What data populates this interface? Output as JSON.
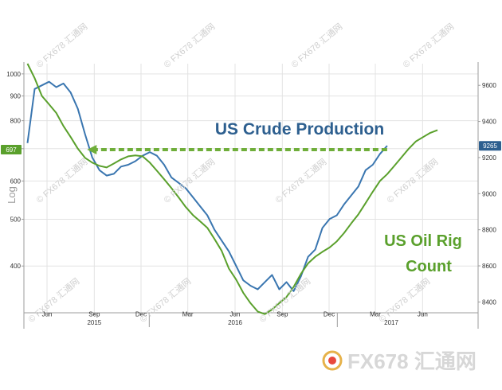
{
  "chart_data": {
    "type": "line",
    "title": "",
    "left_axis": {
      "label": "Log",
      "scale": "log",
      "range": [
        320,
        1050
      ],
      "ticks": [
        400,
        500,
        600,
        700,
        800,
        900,
        1000
      ],
      "tick_labels": [
        "400",
        "500",
        "600",
        "700",
        "800",
        "900",
        "1000"
      ]
    },
    "right_axis": {
      "label": "",
      "scale": "linear",
      "range": [
        8340,
        9720
      ],
      "ticks": [
        8400,
        8600,
        8800,
        9000,
        9200,
        9400,
        9600
      ],
      "tick_labels": [
        "8400",
        "8600",
        "8800",
        "9000",
        "9200",
        "9400",
        "9600"
      ]
    },
    "x_axis": {
      "start": "2015-05-01",
      "end": "2017-10-01",
      "month_ticks": [
        {
          "date": "2015-06-15",
          "label": "Jun"
        },
        {
          "date": "2015-09-15",
          "label": "Sep"
        },
        {
          "date": "2015-12-15",
          "label": "Dec"
        },
        {
          "date": "2016-03-15",
          "label": "Mar"
        },
        {
          "date": "2016-06-15",
          "label": "Jun"
        },
        {
          "date": "2016-09-15",
          "label": "Sep"
        },
        {
          "date": "2016-12-15",
          "label": "Dec"
        },
        {
          "date": "2017-03-15",
          "label": "Mar"
        },
        {
          "date": "2017-06-15",
          "label": "Jun"
        }
      ],
      "year_labels": [
        {
          "date": "2015-09-15",
          "label": "2015"
        },
        {
          "date": "2016-06-15",
          "label": "2016"
        },
        {
          "date": "2017-04-15",
          "label": "2017"
        }
      ],
      "year_dividers": [
        "2015-12-31",
        "2016-12-31"
      ]
    },
    "series": [
      {
        "name": "US Crude Production",
        "axis": "right",
        "color": "#3a76b0",
        "points": [
          [
            "2015-05-08",
            9280
          ],
          [
            "2015-05-22",
            9580
          ],
          [
            "2015-06-05",
            9600
          ],
          [
            "2015-06-19",
            9620
          ],
          [
            "2015-07-03",
            9590
          ],
          [
            "2015-07-17",
            9610
          ],
          [
            "2015-07-31",
            9560
          ],
          [
            "2015-08-14",
            9470
          ],
          [
            "2015-08-28",
            9330
          ],
          [
            "2015-09-11",
            9200
          ],
          [
            "2015-09-25",
            9130
          ],
          [
            "2015-10-09",
            9100
          ],
          [
            "2015-10-23",
            9110
          ],
          [
            "2015-11-06",
            9150
          ],
          [
            "2015-11-20",
            9160
          ],
          [
            "2015-12-04",
            9180
          ],
          [
            "2015-12-18",
            9210
          ],
          [
            "2016-01-01",
            9230
          ],
          [
            "2016-01-15",
            9210
          ],
          [
            "2016-01-29",
            9160
          ],
          [
            "2016-02-12",
            9090
          ],
          [
            "2016-02-26",
            9060
          ],
          [
            "2016-03-11",
            9030
          ],
          [
            "2016-03-25",
            8980
          ],
          [
            "2016-04-08",
            8930
          ],
          [
            "2016-04-22",
            8880
          ],
          [
            "2016-05-06",
            8800
          ],
          [
            "2016-05-20",
            8740
          ],
          [
            "2016-06-03",
            8680
          ],
          [
            "2016-06-17",
            8600
          ],
          [
            "2016-07-01",
            8520
          ],
          [
            "2016-07-15",
            8490
          ],
          [
            "2016-07-29",
            8470
          ],
          [
            "2016-08-12",
            8510
          ],
          [
            "2016-08-26",
            8550
          ],
          [
            "2016-09-09",
            8470
          ],
          [
            "2016-09-23",
            8510
          ],
          [
            "2016-10-07",
            8460
          ],
          [
            "2016-10-21",
            8540
          ],
          [
            "2016-11-04",
            8650
          ],
          [
            "2016-11-18",
            8690
          ],
          [
            "2016-12-02",
            8810
          ],
          [
            "2016-12-16",
            8860
          ],
          [
            "2016-12-30",
            8880
          ],
          [
            "2017-01-13",
            8940
          ],
          [
            "2017-01-27",
            8990
          ],
          [
            "2017-02-10",
            9040
          ],
          [
            "2017-02-24",
            9130
          ],
          [
            "2017-03-10",
            9160
          ],
          [
            "2017-03-24",
            9220
          ],
          [
            "2017-04-07",
            9265
          ]
        ]
      },
      {
        "name": "US Oil Rig Count",
        "axis": "left",
        "color": "#5aa02c",
        "points": [
          [
            "2015-05-08",
            1050
          ],
          [
            "2015-05-22",
            980
          ],
          [
            "2015-06-05",
            900
          ],
          [
            "2015-06-19",
            865
          ],
          [
            "2015-07-03",
            830
          ],
          [
            "2015-07-17",
            780
          ],
          [
            "2015-07-31",
            740
          ],
          [
            "2015-08-14",
            700
          ],
          [
            "2015-08-28",
            670
          ],
          [
            "2015-09-11",
            655
          ],
          [
            "2015-09-25",
            645
          ],
          [
            "2015-10-09",
            640
          ],
          [
            "2015-10-23",
            652
          ],
          [
            "2015-11-06",
            665
          ],
          [
            "2015-11-20",
            675
          ],
          [
            "2015-12-04",
            678
          ],
          [
            "2015-12-18",
            675
          ],
          [
            "2016-01-01",
            655
          ],
          [
            "2016-01-15",
            630
          ],
          [
            "2016-01-29",
            605
          ],
          [
            "2016-02-12",
            580
          ],
          [
            "2016-02-26",
            555
          ],
          [
            "2016-03-11",
            530
          ],
          [
            "2016-03-25",
            510
          ],
          [
            "2016-04-08",
            495
          ],
          [
            "2016-04-22",
            480
          ],
          [
            "2016-05-06",
            455
          ],
          [
            "2016-05-20",
            430
          ],
          [
            "2016-06-03",
            395
          ],
          [
            "2016-06-17",
            375
          ],
          [
            "2016-07-01",
            352
          ],
          [
            "2016-07-15",
            335
          ],
          [
            "2016-07-29",
            322
          ],
          [
            "2016-08-12",
            318
          ],
          [
            "2016-08-26",
            325
          ],
          [
            "2016-09-09",
            335
          ],
          [
            "2016-09-23",
            345
          ],
          [
            "2016-10-07",
            362
          ],
          [
            "2016-10-21",
            385
          ],
          [
            "2016-11-04",
            405
          ],
          [
            "2016-11-18",
            418
          ],
          [
            "2016-12-02",
            428
          ],
          [
            "2016-12-16",
            437
          ],
          [
            "2016-12-30",
            450
          ],
          [
            "2017-01-13",
            468
          ],
          [
            "2017-01-27",
            490
          ],
          [
            "2017-02-10",
            512
          ],
          [
            "2017-02-24",
            540
          ],
          [
            "2017-03-10",
            570
          ],
          [
            "2017-03-24",
            600
          ],
          [
            "2017-04-07",
            620
          ],
          [
            "2017-04-21",
            645
          ],
          [
            "2017-05-05",
            672
          ],
          [
            "2017-05-19",
            700
          ],
          [
            "2017-06-02",
            725
          ],
          [
            "2017-06-16",
            740
          ],
          [
            "2017-06-30",
            755
          ],
          [
            "2017-07-14",
            765
          ]
        ]
      }
    ],
    "annotations": [
      {
        "text": "US Crude Production",
        "color": "#2d5f8f"
      },
      {
        "text": "US Oil Rig",
        "color": "#5aa02c"
      },
      {
        "text": "Count",
        "color": "#5aa02c"
      }
    ],
    "reference_line": {
      "style": "dashed-arrow",
      "color": "#6fae3a",
      "axis": "left",
      "value": 697,
      "from_date": "2017-04-07",
      "to_date": "2015-09-01"
    },
    "last_value_badges": [
      {
        "axis": "left",
        "text": "697",
        "color": "#5aa02c"
      },
      {
        "axis": "right",
        "text": "9265",
        "color": "#2d5f8f"
      }
    ],
    "grid": true,
    "legend": "none"
  },
  "watermark": {
    "text": "© FX678 汇通网",
    "logo_text": "FX678 汇通网"
  }
}
